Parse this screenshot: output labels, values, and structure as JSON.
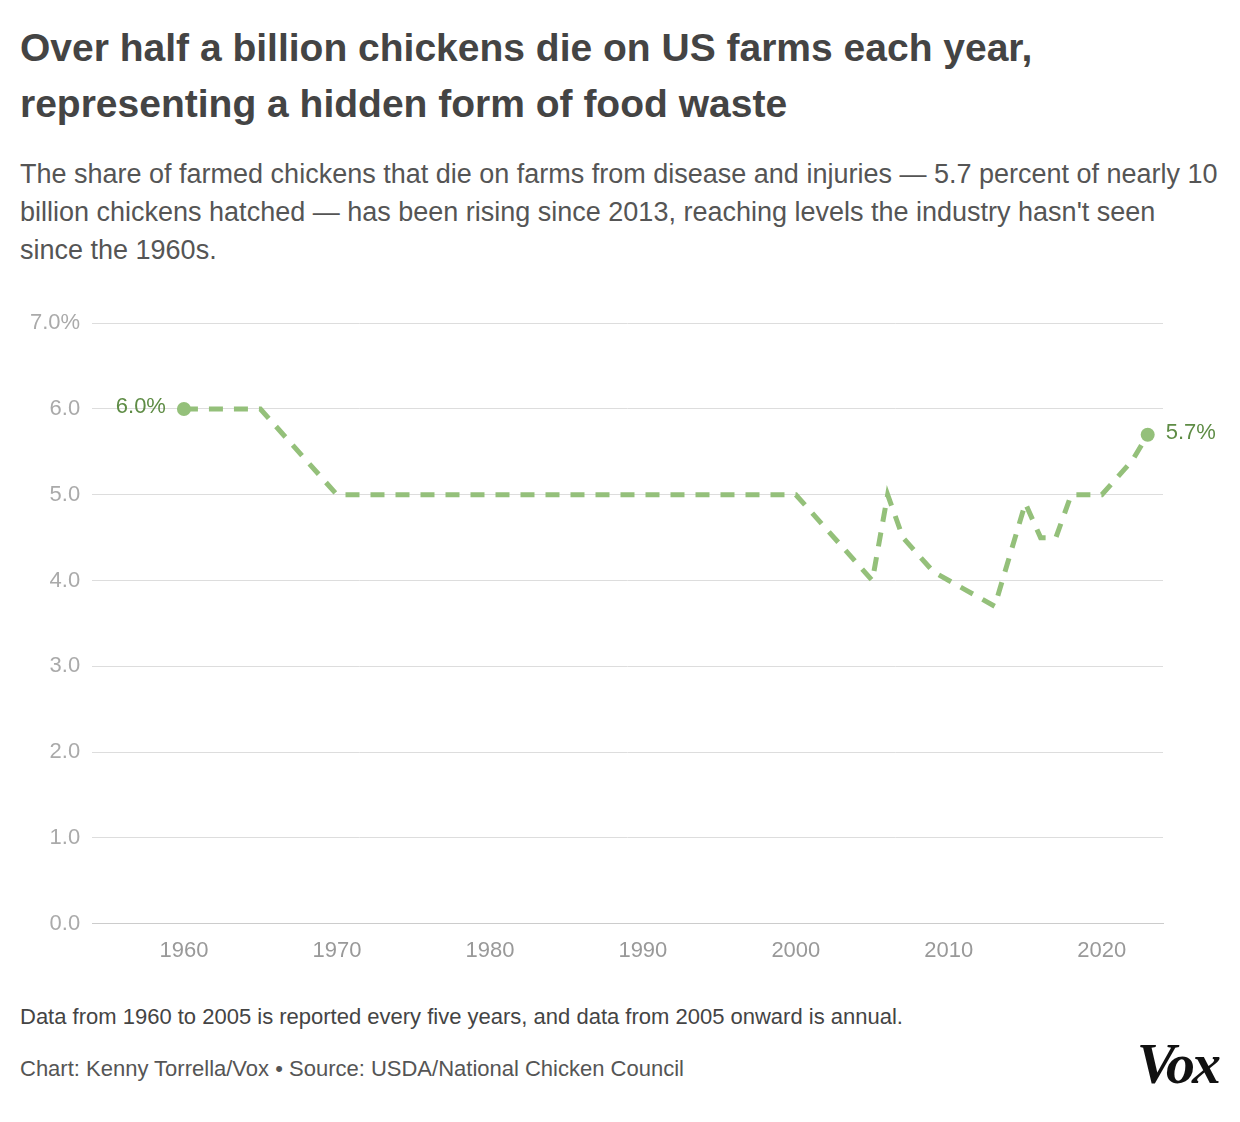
{
  "chart_data": {
    "type": "line",
    "title": "Over half a billion chickens die on US farms each year, representing a hidden form of food waste",
    "subtitle": "The share of farmed chickens that die on farms from disease and injuries — 5.7 percent of nearly 10 billion chickens hatched — has been rising since 2013, reaching levels the industry hasn't seen since the 1960s.",
    "note": "Data from 1960 to 2005 is reported every five years, and data from 2005 onward is annual.",
    "credit": "Chart: Kenny Torrella/Vox • Source: USDA/National Chicken Council",
    "logo": "Vox",
    "x": [
      1960,
      1965,
      1970,
      1975,
      1980,
      1985,
      1990,
      1995,
      2000,
      2005,
      2006,
      2007,
      2008,
      2009,
      2010,
      2011,
      2012,
      2013,
      2014,
      2015,
      2016,
      2017,
      2018,
      2019,
      2020,
      2021,
      2022,
      2023
    ],
    "values": [
      6.0,
      6.0,
      5.0,
      5.0,
      5.0,
      5.0,
      5.0,
      5.0,
      5.0,
      4.0,
      5.0,
      4.5,
      4.3,
      4.1,
      4.0,
      3.9,
      3.8,
      3.7,
      4.3,
      4.9,
      4.5,
      4.5,
      5.0,
      5.0,
      5.0,
      5.2,
      5.4,
      5.7
    ],
    "value_labels": [
      "6.0%",
      null,
      null,
      null,
      null,
      null,
      null,
      null,
      null,
      null,
      null,
      null,
      null,
      null,
      null,
      null,
      null,
      null,
      null,
      null,
      null,
      null,
      null,
      null,
      null,
      null,
      null,
      "5.7%"
    ],
    "xlim": [
      1954,
      2024
    ],
    "xticks": [
      1960,
      1970,
      1980,
      1990,
      2000,
      2010,
      2020
    ],
    "ylim": [
      0,
      7
    ],
    "yticks": [
      {
        "value": 0,
        "label": "0.0"
      },
      {
        "value": 1,
        "label": "1.0"
      },
      {
        "value": 2,
        "label": "2.0"
      },
      {
        "value": 3,
        "label": "3.0"
      },
      {
        "value": 4,
        "label": "4.0"
      },
      {
        "value": 5,
        "label": "5.0"
      },
      {
        "value": 6,
        "label": "6.0"
      },
      {
        "value": 7,
        "label": "7.0%"
      }
    ],
    "grid": true,
    "color": "#94c07a",
    "line_style": "dashed",
    "marker": "circle"
  }
}
